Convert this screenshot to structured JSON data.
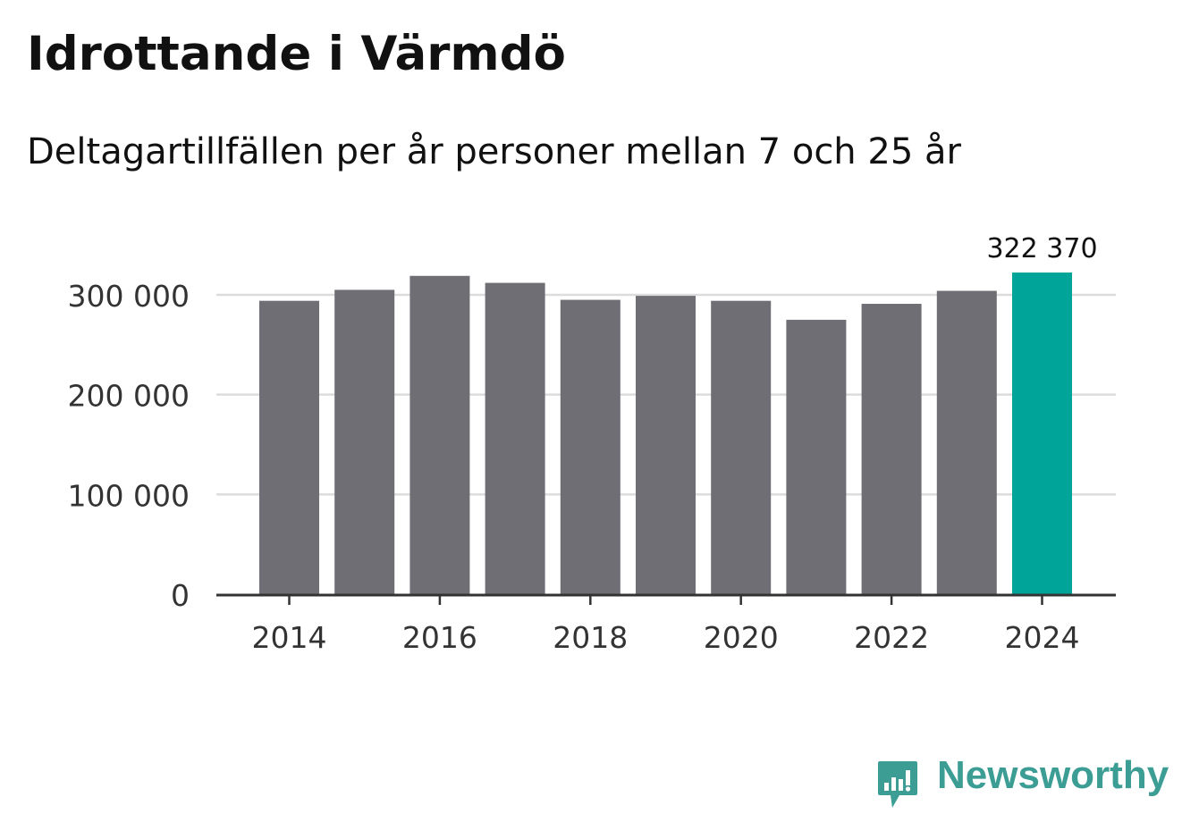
{
  "chart_data": {
    "type": "bar",
    "title": "Idrottande i Värmdö",
    "subtitle": "Deltagartillfällen per år personer mellan 7 och 25 år",
    "categories": [
      "2014",
      "2015",
      "2016",
      "2017",
      "2018",
      "2019",
      "2020",
      "2021",
      "2022",
      "2023",
      "2024"
    ],
    "values": [
      294000,
      305000,
      319000,
      312000,
      295000,
      299000,
      294000,
      275000,
      291000,
      304000,
      322370
    ],
    "highlight_index": 10,
    "highlight_label": "322 370",
    "x_tick_labels": [
      "2014",
      "2016",
      "2018",
      "2020",
      "2022",
      "2024"
    ],
    "y_ticks": [
      0,
      100000,
      200000,
      300000
    ],
    "y_tick_labels": [
      "0",
      "100 000",
      "200 000",
      "300 000"
    ],
    "ylim": [
      0,
      322370
    ],
    "xlabel": "",
    "ylabel": "",
    "grid": true,
    "colors": {
      "bar": "#6f6e74",
      "highlight": "#00a498",
      "grid": "#dcdcdc",
      "axis": "#333333",
      "tick_text": "#333333"
    }
  },
  "brand": {
    "name": "Newsworthy",
    "color": "#3c9d94",
    "icon": "newsworthy-logo-icon"
  }
}
